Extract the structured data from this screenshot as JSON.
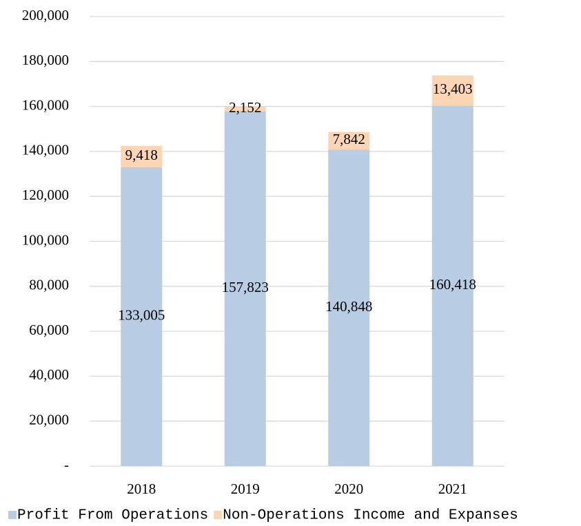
{
  "chart_data": {
    "type": "stacked_bar",
    "categories": [
      "2018",
      "2019",
      "2020",
      "2021"
    ],
    "series": [
      {
        "name": "Profit From Operations",
        "color": "#b8cce4",
        "values": [
          133005,
          157823,
          140848,
          160418
        ],
        "value_labels": [
          "133,005",
          "157,823",
          "140,848",
          "160,418"
        ]
      },
      {
        "name": "Non-Operations Income and Expanses",
        "color": "#fcd5b5",
        "values": [
          9418,
          2152,
          7842,
          13403
        ],
        "value_labels": [
          "9,418",
          "2,152",
          "7,842",
          "13,403"
        ]
      }
    ],
    "ylim": [
      0,
      200000
    ],
    "yticks": [
      {
        "value": 0,
        "label": "-"
      },
      {
        "value": 20000,
        "label": "20,000"
      },
      {
        "value": 40000,
        "label": "40,000"
      },
      {
        "value": 60000,
        "label": "60,000"
      },
      {
        "value": 80000,
        "label": "80,000"
      },
      {
        "value": 100000,
        "label": "100,000"
      },
      {
        "value": 120000,
        "label": "120,000"
      },
      {
        "value": 140000,
        "label": "140,000"
      },
      {
        "value": 160000,
        "label": "160,000"
      },
      {
        "value": 180000,
        "label": "180,000"
      },
      {
        "value": 200000,
        "label": "200,000"
      }
    ],
    "grid": true,
    "legend": "bottom"
  }
}
